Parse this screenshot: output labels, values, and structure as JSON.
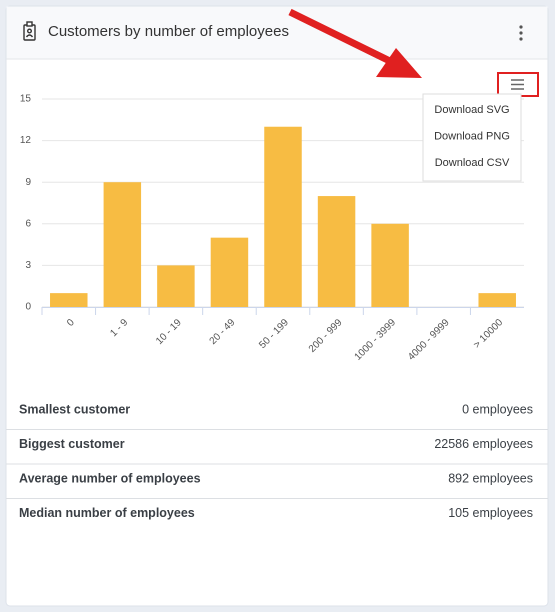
{
  "header": {
    "title": "Customers by number of employees"
  },
  "chart_data": {
    "type": "bar",
    "categories": [
      "0",
      "1 - 9",
      "10 - 19",
      "20 - 49",
      "50 - 199",
      "200 - 999",
      "1000 - 3999",
      "4000 - 9999",
      "> 10000"
    ],
    "values": [
      1,
      9,
      3,
      5,
      13,
      8,
      6,
      0,
      1
    ],
    "color": "#f7bc43",
    "ylim": [
      0,
      15
    ],
    "yticks": [
      0,
      3,
      6,
      9,
      12,
      15
    ],
    "grid": true
  },
  "menu": {
    "items": [
      "Download SVG",
      "Download PNG",
      "Download CSV"
    ]
  },
  "stats": {
    "rows": [
      [
        "Smallest customer",
        "0 employees"
      ],
      [
        "Biggest customer",
        "22586 employees"
      ],
      [
        "Average number of employees",
        "892 employees"
      ],
      [
        "Median number of employees",
        "105 employees"
      ]
    ]
  }
}
